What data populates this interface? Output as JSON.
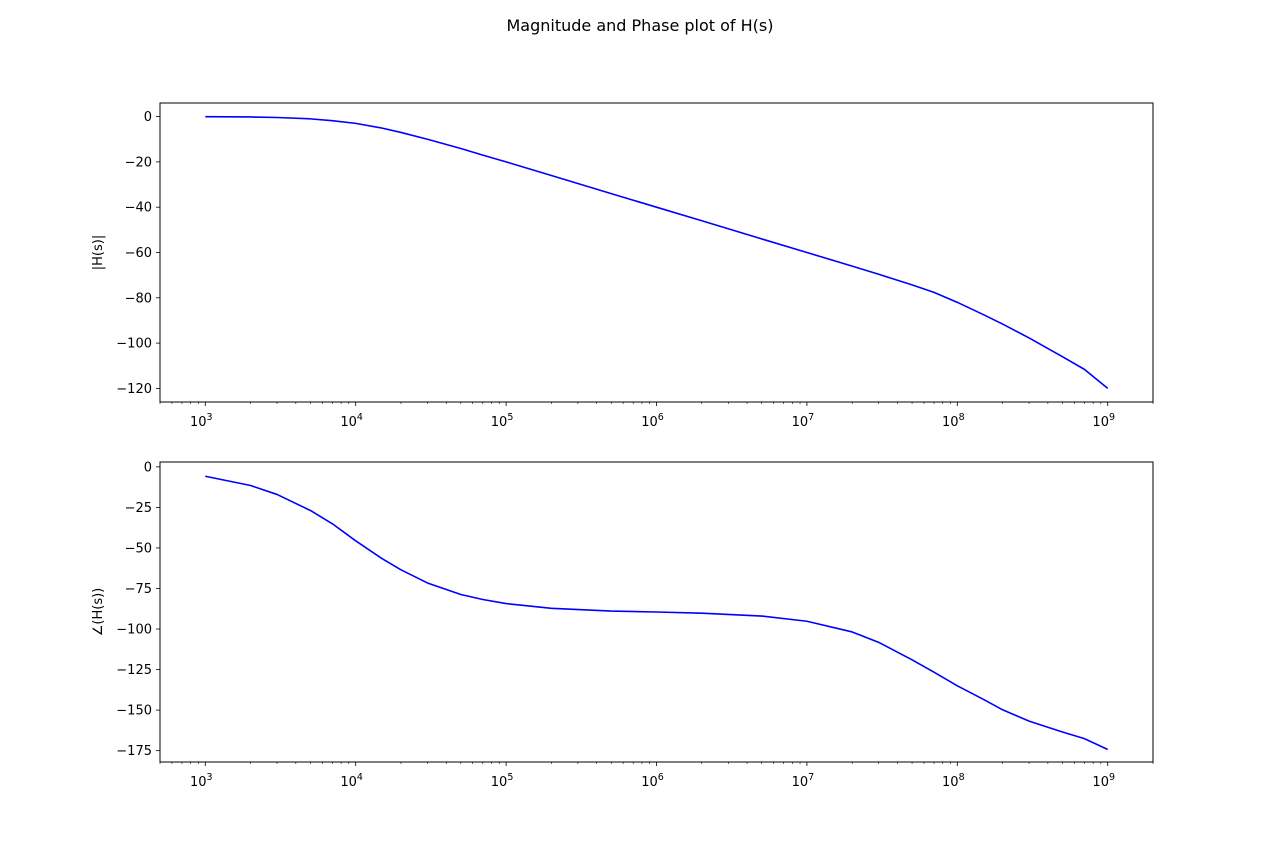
{
  "figure": {
    "suptitle": "Magnitude and Phase plot of H(s)"
  },
  "chart_data": [
    {
      "type": "line",
      "xscale": "log",
      "xlim": [
        500,
        2000000000
      ],
      "ylim": [
        -126,
        6
      ],
      "ylabel": "|H(s)|",
      "xticks": [
        {
          "base": "10",
          "exp": "3",
          "value": 1000
        },
        {
          "base": "10",
          "exp": "4",
          "value": 10000
        },
        {
          "base": "10",
          "exp": "5",
          "value": 100000
        },
        {
          "base": "10",
          "exp": "6",
          "value": 1000000
        },
        {
          "base": "10",
          "exp": "7",
          "value": 10000000
        },
        {
          "base": "10",
          "exp": "8",
          "value": 100000000
        },
        {
          "base": "10",
          "exp": "9",
          "value": 1000000000
        }
      ],
      "yticks": [
        {
          "label": "0",
          "value": 0
        },
        {
          "label": "−20",
          "value": -20
        },
        {
          "label": "−40",
          "value": -40
        },
        {
          "label": "−60",
          "value": -60
        },
        {
          "label": "−80",
          "value": -80
        },
        {
          "label": "−100",
          "value": -100
        },
        {
          "label": "−120",
          "value": -120
        }
      ],
      "grid": false,
      "series": [
        {
          "color": "#0000ff",
          "x": [
            1000,
            2000,
            3000,
            5000,
            7000,
            10000,
            15000,
            20000,
            30000,
            50000,
            70000,
            100000,
            200000,
            500000,
            1000000,
            2000000,
            5000000,
            10000000,
            20000000,
            30000000,
            50000000,
            70000000,
            100000000,
            150000000,
            200000000,
            300000000,
            500000000,
            700000000,
            1000000000
          ],
          "y": [
            -0.04,
            -0.17,
            -0.4,
            -1.0,
            -1.8,
            -3.0,
            -5.1,
            -7.0,
            -10.0,
            -14.1,
            -17.0,
            -20.0,
            -26.0,
            -34.0,
            -40.0,
            -46.0,
            -54.0,
            -60.0,
            -66.0,
            -69.6,
            -74.3,
            -77.6,
            -82.0,
            -87.5,
            -91.6,
            -97.7,
            -106.0,
            -111.6,
            -120.0
          ]
        }
      ]
    },
    {
      "type": "line",
      "xscale": "log",
      "xlim": [
        500,
        2000000000
      ],
      "ylim": [
        -182,
        3
      ],
      "ylabel": "∠(H(s))",
      "xticks": [
        {
          "base": "10",
          "exp": "3",
          "value": 1000
        },
        {
          "base": "10",
          "exp": "4",
          "value": 10000
        },
        {
          "base": "10",
          "exp": "5",
          "value": 100000
        },
        {
          "base": "10",
          "exp": "6",
          "value": 1000000
        },
        {
          "base": "10",
          "exp": "7",
          "value": 10000000
        },
        {
          "base": "10",
          "exp": "8",
          "value": 100000000
        },
        {
          "base": "10",
          "exp": "9",
          "value": 1000000000
        }
      ],
      "yticks": [
        {
          "label": "0",
          "value": 0
        },
        {
          "label": "−25",
          "value": -25
        },
        {
          "label": "−50",
          "value": -50
        },
        {
          "label": "−75",
          "value": -75
        },
        {
          "label": "−100",
          "value": -100
        },
        {
          "label": "−125",
          "value": -125
        },
        {
          "label": "−150",
          "value": -150
        },
        {
          "label": "−175",
          "value": -175
        }
      ],
      "grid": false,
      "series": [
        {
          "color": "#0000ff",
          "x": [
            1000,
            2000,
            3000,
            5000,
            7000,
            10000,
            15000,
            20000,
            30000,
            50000,
            70000,
            100000,
            200000,
            500000,
            1000000,
            2000000,
            5000000,
            10000000,
            20000000,
            30000000,
            50000000,
            70000000,
            100000000,
            150000000,
            200000000,
            300000000,
            500000000,
            700000000,
            1000000000
          ],
          "y": [
            -5.8,
            -11.5,
            -17.0,
            -26.9,
            -35.1,
            -45.6,
            -56.6,
            -63.5,
            -71.6,
            -78.7,
            -81.8,
            -84.3,
            -87.2,
            -88.9,
            -89.5,
            -90.2,
            -92.0,
            -95.2,
            -101.8,
            -108.2,
            -119.0,
            -126.6,
            -135.0,
            -143.5,
            -149.8,
            -156.8,
            -163.5,
            -167.6,
            -174.3
          ]
        }
      ]
    }
  ]
}
